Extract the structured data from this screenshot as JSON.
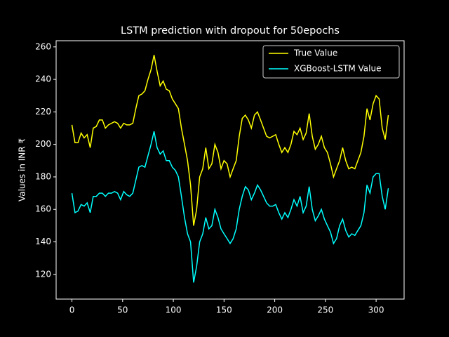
{
  "chart_data": {
    "type": "line",
    "title": "LSTM prediction with dropout for 50epochs",
    "y_label": "Values in INR ₹",
    "x": [
      0,
      3,
      6,
      9,
      12,
      15,
      18,
      21,
      24,
      27,
      30,
      33,
      36,
      39,
      42,
      45,
      48,
      51,
      54,
      57,
      60,
      63,
      66,
      69,
      72,
      75,
      78,
      81,
      84,
      87,
      90,
      93,
      96,
      99,
      102,
      105,
      108,
      111,
      114,
      117,
      120,
      123,
      126,
      129,
      132,
      135,
      138,
      141,
      144,
      147,
      150,
      153,
      156,
      159,
      162,
      165,
      168,
      171,
      174,
      177,
      180,
      183,
      186,
      189,
      192,
      195,
      198,
      201,
      204,
      207,
      210,
      213,
      216,
      219,
      222,
      225,
      228,
      231,
      234,
      237,
      240,
      243,
      246,
      249,
      252,
      255,
      258,
      261,
      264,
      267,
      270,
      273,
      276,
      279,
      282,
      285,
      288,
      291,
      294,
      297,
      300,
      303,
      306,
      309,
      312
    ],
    "series": [
      {
        "name": "True Value",
        "color": "#ffff00",
        "values": [
          212,
          201,
          201,
          207,
          204,
          206,
          198,
          210,
          211,
          215,
          215,
          210,
          212,
          213,
          214,
          213,
          210,
          213,
          212,
          212,
          213,
          222,
          230,
          231,
          233,
          240,
          246,
          255,
          245,
          236,
          239,
          234,
          233,
          228,
          225,
          222,
          210,
          200,
          190,
          175,
          150,
          160,
          180,
          185,
          198,
          185,
          188,
          200,
          195,
          185,
          190,
          188,
          180,
          185,
          190,
          205,
          216,
          218,
          215,
          210,
          218,
          220,
          215,
          210,
          205,
          204,
          205,
          206,
          200,
          195,
          198,
          195,
          200,
          208,
          206,
          210,
          203,
          207,
          219,
          205,
          197,
          200,
          205,
          198,
          195,
          188,
          180,
          185,
          190,
          198,
          190,
          185,
          186,
          185,
          190,
          195,
          205,
          222,
          215,
          225,
          230,
          228,
          210,
          203,
          218
        ]
      },
      {
        "name": "XGBoost-LSTM Value",
        "color": "#00ffff",
        "values": [
          170,
          158,
          159,
          163,
          162,
          164,
          158,
          168,
          168,
          170,
          170,
          168,
          170,
          170,
          171,
          170,
          166,
          171,
          169,
          168,
          170,
          178,
          186,
          187,
          186,
          193,
          200,
          208,
          198,
          194,
          196,
          190,
          190,
          186,
          184,
          180,
          168,
          155,
          145,
          140,
          115,
          125,
          140,
          145,
          155,
          148,
          150,
          160,
          155,
          148,
          145,
          142,
          139,
          142,
          148,
          160,
          168,
          174,
          172,
          166,
          170,
          175,
          172,
          168,
          164,
          162,
          162,
          163,
          158,
          154,
          158,
          155,
          160,
          166,
          162,
          168,
          158,
          162,
          174,
          160,
          153,
          156,
          160,
          154,
          150,
          146,
          139,
          142,
          150,
          154,
          147,
          143,
          145,
          144,
          147,
          150,
          158,
          175,
          170,
          180,
          182,
          182,
          168,
          160,
          173
        ]
      }
    ],
    "xlim": [
      -15.6,
      327.6
    ],
    "xticks": [
      0,
      50,
      100,
      150,
      200,
      250,
      300
    ],
    "ylim": [
      104.8,
      263.8
    ],
    "yticks": [
      120,
      140,
      160,
      180,
      200,
      220,
      240,
      260
    ],
    "legend": "upper right"
  }
}
